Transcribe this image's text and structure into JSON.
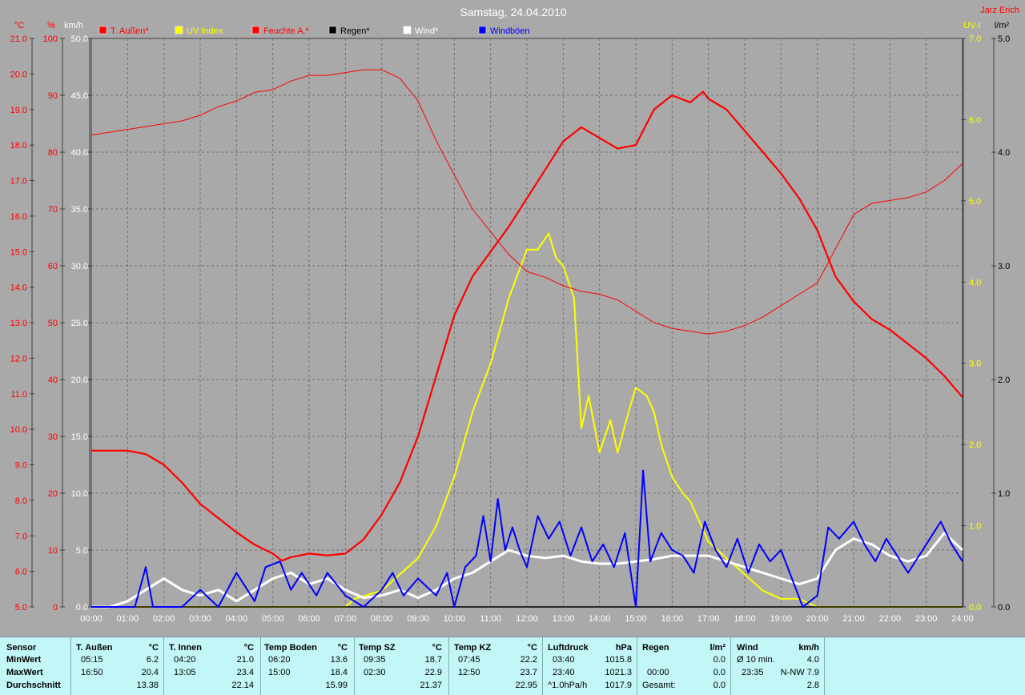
{
  "chart_data": {
    "type": "line",
    "title": "Samstag, 24.04.2010",
    "author": "Jarz Erich",
    "x_ticks": [
      "00:00",
      "01:00",
      "02:00",
      "03:00",
      "04:00",
      "05:00",
      "06:00",
      "07:00",
      "08:00",
      "09:00",
      "10:00",
      "11:00",
      "12:00",
      "13:00",
      "14:00",
      "15:00",
      "16:00",
      "17:00",
      "18:00",
      "19:00",
      "20:00",
      "21:00",
      "22:00",
      "23:00",
      "24:00"
    ],
    "xlim": [
      0,
      24
    ],
    "axes": {
      "temp": {
        "unit": "°C",
        "range": [
          5,
          21
        ],
        "ticks": [
          "5.0",
          "6.0",
          "7.0",
          "8.0",
          "9.0",
          "10.0",
          "11.0",
          "12.0",
          "13.0",
          "14.0",
          "15.0",
          "16.0",
          "17.0",
          "18.0",
          "19.0",
          "20.0",
          "21.0"
        ]
      },
      "humidity": {
        "unit": "%",
        "range": [
          0,
          100
        ],
        "ticks": [
          "0",
          "10",
          "20",
          "30",
          "40",
          "50",
          "60",
          "70",
          "80",
          "90",
          "100"
        ]
      },
      "wind": {
        "unit": "km/h",
        "range": [
          0,
          50
        ],
        "ticks": [
          "0.0",
          "5.0",
          "10.0",
          "15.0",
          "20.0",
          "25.0",
          "30.0",
          "35.0",
          "40.0",
          "45.0",
          "50.0"
        ]
      },
      "uv": {
        "unit": "UV-I",
        "range": [
          0,
          7
        ],
        "ticks": [
          "0.0",
          "1.0",
          "2.0",
          "3.0",
          "4.0",
          "5.0",
          "6.0",
          "7.0"
        ]
      },
      "rain": {
        "unit": "l/m²",
        "range": [
          0,
          5
        ],
        "ticks": [
          "0.0",
          "1.0",
          "2.0",
          "3.0",
          "4.0",
          "5.0"
        ]
      }
    },
    "grid": true,
    "legend_position": "top",
    "series": [
      {
        "name": "T. Außen*",
        "color": "#ff0000",
        "axis": "temp",
        "points": [
          [
            0,
            9.4
          ],
          [
            1,
            9.4
          ],
          [
            1.5,
            9.3
          ],
          [
            2,
            9.0
          ],
          [
            2.5,
            8.5
          ],
          [
            3,
            7.9
          ],
          [
            3.5,
            7.5
          ],
          [
            4,
            7.1
          ],
          [
            4.5,
            6.75
          ],
          [
            5,
            6.5
          ],
          [
            5.25,
            6.3
          ],
          [
            5.5,
            6.4
          ],
          [
            6,
            6.5
          ],
          [
            6.5,
            6.45
          ],
          [
            7,
            6.5
          ],
          [
            7.5,
            6.9
          ],
          [
            8,
            7.6
          ],
          [
            8.5,
            8.5
          ],
          [
            9,
            9.8
          ],
          [
            9.5,
            11.5
          ],
          [
            10,
            13.2
          ],
          [
            10.5,
            14.3
          ],
          [
            11,
            15.0
          ],
          [
            11.5,
            15.7
          ],
          [
            12,
            16.5
          ],
          [
            12.5,
            17.3
          ],
          [
            13,
            18.1
          ],
          [
            13.5,
            18.5
          ],
          [
            14,
            18.2
          ],
          [
            14.5,
            17.9
          ],
          [
            15,
            18.0
          ],
          [
            15.5,
            19.0
          ],
          [
            16,
            19.4
          ],
          [
            16.5,
            19.2
          ],
          [
            16.85,
            19.5
          ],
          [
            17,
            19.3
          ],
          [
            17.5,
            19.0
          ],
          [
            18,
            18.4
          ],
          [
            18.5,
            17.8
          ],
          [
            19,
            17.2
          ],
          [
            19.5,
            16.5
          ],
          [
            20,
            15.6
          ],
          [
            20.5,
            14.3
          ],
          [
            21,
            13.6
          ],
          [
            21.5,
            13.1
          ],
          [
            22,
            12.8
          ],
          [
            22.5,
            12.4
          ],
          [
            23,
            12.0
          ],
          [
            23.5,
            11.5
          ],
          [
            24,
            10.9
          ]
        ]
      },
      {
        "name": "UV Index",
        "color": "#ffff00",
        "axis": "uv",
        "points": [
          [
            0,
            0
          ],
          [
            7,
            0
          ],
          [
            7.25,
            0.1
          ],
          [
            8,
            0.2
          ],
          [
            8.5,
            0.4
          ],
          [
            9,
            0.6
          ],
          [
            9.5,
            1.0
          ],
          [
            10,
            1.6
          ],
          [
            10.5,
            2.4
          ],
          [
            11,
            3.0
          ],
          [
            11.5,
            3.8
          ],
          [
            12,
            4.4
          ],
          [
            12.3,
            4.4
          ],
          [
            12.6,
            4.6
          ],
          [
            12.8,
            4.3
          ],
          [
            13,
            4.2
          ],
          [
            13.3,
            3.8
          ],
          [
            13.5,
            2.2
          ],
          [
            13.7,
            2.6
          ],
          [
            14,
            1.9
          ],
          [
            14.3,
            2.3
          ],
          [
            14.5,
            1.9
          ],
          [
            14.8,
            2.4
          ],
          [
            15,
            2.7
          ],
          [
            15.3,
            2.6
          ],
          [
            15.5,
            2.4
          ],
          [
            15.7,
            2.0
          ],
          [
            16,
            1.6
          ],
          [
            16.3,
            1.4
          ],
          [
            16.5,
            1.3
          ],
          [
            16.8,
            1.0
          ],
          [
            17,
            0.8
          ],
          [
            17.5,
            0.6
          ],
          [
            18,
            0.4
          ],
          [
            18.5,
            0.2
          ],
          [
            19,
            0.1
          ],
          [
            19.5,
            0.1
          ],
          [
            20,
            0
          ],
          [
            24,
            0
          ]
        ]
      },
      {
        "name": "Feuchte A.*",
        "color": "#ff0000",
        "axis": "humidity",
        "points": [
          [
            0,
            83
          ],
          [
            0.5,
            83.5
          ],
          [
            1,
            84
          ],
          [
            1.5,
            84.5
          ],
          [
            2,
            85
          ],
          [
            2.5,
            85.5
          ],
          [
            3,
            86.5
          ],
          [
            3.5,
            88
          ],
          [
            4,
            89
          ],
          [
            4.5,
            90.5
          ],
          [
            5,
            91
          ],
          [
            5.5,
            92.5
          ],
          [
            6,
            93.5
          ],
          [
            6.5,
            93.5
          ],
          [
            7,
            94
          ],
          [
            7.5,
            94.5
          ],
          [
            8,
            94.5
          ],
          [
            8.5,
            93
          ],
          [
            9,
            89
          ],
          [
            9.5,
            82
          ],
          [
            10,
            76
          ],
          [
            10.5,
            70
          ],
          [
            11,
            66
          ],
          [
            11.5,
            62
          ],
          [
            12,
            59
          ],
          [
            12.5,
            58
          ],
          [
            13,
            56.5
          ],
          [
            13.5,
            55.5
          ],
          [
            14,
            55
          ],
          [
            14.5,
            54
          ],
          [
            15,
            52
          ],
          [
            15.5,
            50
          ],
          [
            16,
            49
          ],
          [
            16.5,
            48.5
          ],
          [
            17,
            48
          ],
          [
            17.5,
            48.5
          ],
          [
            18,
            49.5
          ],
          [
            18.5,
            51
          ],
          [
            19,
            53
          ],
          [
            19.5,
            55
          ],
          [
            20,
            57
          ],
          [
            20.5,
            63
          ],
          [
            21,
            69
          ],
          [
            21.5,
            71
          ],
          [
            22,
            71.5
          ],
          [
            22.5,
            72
          ],
          [
            23,
            73
          ],
          [
            23.5,
            75
          ],
          [
            24,
            78
          ]
        ]
      },
      {
        "name": "Regen*",
        "color": "#000000",
        "axis": "rain",
        "points": [
          [
            0,
            0
          ],
          [
            24,
            0
          ]
        ]
      },
      {
        "name": "Wind*",
        "color": "#ffffff",
        "axis": "wind",
        "points": [
          [
            0,
            0
          ],
          [
            0.5,
            0
          ],
          [
            1,
            0.5
          ],
          [
            1.5,
            1.5
          ],
          [
            2,
            2.5
          ],
          [
            2.5,
            1.5
          ],
          [
            3,
            1
          ],
          [
            3.5,
            1.5
          ],
          [
            4,
            0.5
          ],
          [
            4.5,
            1.5
          ],
          [
            5,
            2.5
          ],
          [
            5.5,
            3.0
          ],
          [
            6,
            2.0
          ],
          [
            6.5,
            2.5
          ],
          [
            7,
            1.5
          ],
          [
            7.5,
            0.8
          ],
          [
            8,
            1.0
          ],
          [
            8.5,
            1.5
          ],
          [
            9,
            0.8
          ],
          [
            9.5,
            1.5
          ],
          [
            10,
            2.5
          ],
          [
            10.5,
            3.0
          ],
          [
            11,
            4.0
          ],
          [
            11.5,
            5.0
          ],
          [
            12,
            4.5
          ],
          [
            12.5,
            4.3
          ],
          [
            13,
            4.5
          ],
          [
            13.5,
            4.0
          ],
          [
            14,
            3.8
          ],
          [
            14.5,
            3.8
          ],
          [
            15,
            4.0
          ],
          [
            15.5,
            4.2
          ],
          [
            16,
            4.5
          ],
          [
            16.5,
            4.5
          ],
          [
            17,
            4.5
          ],
          [
            17.5,
            4.0
          ],
          [
            18,
            3.5
          ],
          [
            18.5,
            3.0
          ],
          [
            19,
            2.5
          ],
          [
            19.5,
            2.0
          ],
          [
            20,
            2.5
          ],
          [
            20.5,
            5.0
          ],
          [
            21,
            6.0
          ],
          [
            21.5,
            5.5
          ],
          [
            22,
            4.5
          ],
          [
            22.5,
            4.0
          ],
          [
            23,
            4.5
          ],
          [
            23.5,
            6.5
          ],
          [
            24,
            5.0
          ]
        ]
      },
      {
        "name": "Windböen",
        "color": "#0000ff",
        "axis": "wind",
        "points": [
          [
            0,
            0
          ],
          [
            1.2,
            0
          ],
          [
            1.5,
            3.5
          ],
          [
            1.7,
            0
          ],
          [
            2.5,
            0
          ],
          [
            3,
            1.5
          ],
          [
            3.5,
            0
          ],
          [
            4,
            3.0
          ],
          [
            4.5,
            0.5
          ],
          [
            4.8,
            3.5
          ],
          [
            5.2,
            4.0
          ],
          [
            5.5,
            1.5
          ],
          [
            5.8,
            3.0
          ],
          [
            6.2,
            1.0
          ],
          [
            6.5,
            3.0
          ],
          [
            7,
            1.0
          ],
          [
            7.5,
            0
          ],
          [
            8,
            1.5
          ],
          [
            8.3,
            3.0
          ],
          [
            8.6,
            1.0
          ],
          [
            9,
            2.5
          ],
          [
            9.5,
            1.0
          ],
          [
            9.8,
            3.0
          ],
          [
            10,
            0
          ],
          [
            10.3,
            3.5
          ],
          [
            10.6,
            4.5
          ],
          [
            10.8,
            8.0
          ],
          [
            11,
            4.0
          ],
          [
            11.2,
            9.5
          ],
          [
            11.4,
            5.0
          ],
          [
            11.6,
            7.0
          ],
          [
            11.8,
            5.0
          ],
          [
            12,
            3.5
          ],
          [
            12.3,
            8.0
          ],
          [
            12.6,
            6.0
          ],
          [
            12.9,
            7.5
          ],
          [
            13.2,
            4.5
          ],
          [
            13.5,
            7.0
          ],
          [
            13.8,
            4.0
          ],
          [
            14.1,
            5.5
          ],
          [
            14.4,
            3.5
          ],
          [
            14.7,
            6.5
          ],
          [
            15,
            0
          ],
          [
            15.2,
            12.0
          ],
          [
            15.4,
            4.0
          ],
          [
            15.7,
            6.5
          ],
          [
            16,
            5.0
          ],
          [
            16.3,
            4.5
          ],
          [
            16.6,
            3.0
          ],
          [
            16.9,
            7.5
          ],
          [
            17.2,
            5.0
          ],
          [
            17.5,
            3.5
          ],
          [
            17.8,
            6.0
          ],
          [
            18.1,
            3.0
          ],
          [
            18.4,
            5.5
          ],
          [
            18.7,
            4.0
          ],
          [
            19,
            5.0
          ],
          [
            19.3,
            2.5
          ],
          [
            19.6,
            0
          ],
          [
            20,
            1.0
          ],
          [
            20.3,
            7.0
          ],
          [
            20.6,
            6.0
          ],
          [
            21,
            7.5
          ],
          [
            21.3,
            5.5
          ],
          [
            21.6,
            4.0
          ],
          [
            21.9,
            6.0
          ],
          [
            22.2,
            4.5
          ],
          [
            22.5,
            3.0
          ],
          [
            22.8,
            4.5
          ],
          [
            23.1,
            6.0
          ],
          [
            23.4,
            7.5
          ],
          [
            23.7,
            5.5
          ],
          [
            24,
            4.0
          ]
        ]
      }
    ]
  },
  "stats": {
    "sensor": {
      "header": "Sensor",
      "row1": "MinWert",
      "row2": "MaxWert",
      "row3": "Durchschnitt"
    },
    "t_aussen": {
      "header": "T. Außen",
      "unit": "°C",
      "min_time": "05:15",
      "min_val": "6.2",
      "max_time": "16:50",
      "max_val": "20.4",
      "avg": "13.38"
    },
    "t_innen": {
      "header": "T. Innen",
      "unit": "°C",
      "min_time": "04:20",
      "min_val": "21.0",
      "max_time": "13:05",
      "max_val": "23.4",
      "avg": "22.14"
    },
    "temp_boden": {
      "header": "Temp Boden",
      "unit": "°C",
      "min_time": "06:20",
      "min_val": "13.6",
      "max_time": "15:00",
      "max_val": "18.4",
      "avg": "15.99"
    },
    "temp_sz": {
      "header": "Temp SZ",
      "unit": "°C",
      "min_time": "09:35",
      "min_val": "18.7",
      "max_time": "02:30",
      "max_val": "22.9",
      "avg": "21.37"
    },
    "temp_kz": {
      "header": "Temp KZ",
      "unit": "°C",
      "min_time": "07:45",
      "min_val": "22.2",
      "max_time": "12:50",
      "max_val": "23.7",
      "avg": "22.95"
    },
    "luftdruck": {
      "header": "Luftdruck",
      "unit": "hPa",
      "min_time": "03:40",
      "min_val": "1015.8",
      "max_time": "23:40",
      "max_val": "1021.3",
      "avg_label": "^1.0hPa/h",
      "avg": "1017.9"
    },
    "regen": {
      "header": "Regen",
      "unit": "l/m²",
      "min_val": "0.0",
      "max_time": "00:00",
      "max_val": "0.0",
      "avg_label": "Gesamt:",
      "avg": "0.0"
    },
    "wind": {
      "header": "Wind",
      "unit": "km/h",
      "min_time": "Ø 10 min.",
      "min_val": "4.0",
      "max_time": "23:35",
      "max_val": "N-NW 7.9",
      "avg": "2.8"
    }
  }
}
